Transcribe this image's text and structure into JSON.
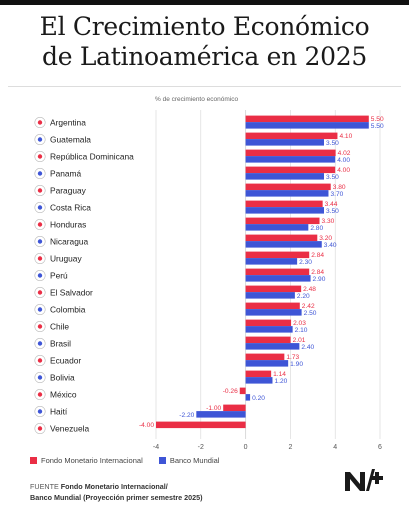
{
  "title_line1": "El Crecimiento Económico",
  "title_line2": "de Latinoamérica en 2025",
  "colors": {
    "imf": "#ea2e45",
    "wb": "#3e55d6",
    "label": "#222222",
    "grid": "#d6d6d6"
  },
  "legend": {
    "imf": "Fondo Monetario Internacional",
    "wb": "Banco Mundial"
  },
  "source": {
    "prefix": "FUENTE",
    "line1": "Fondo Monetario Internacional/",
    "line2": "Banco Mundial (Proyección primer semestre 2025)"
  },
  "logo_text": "N+",
  "chart_data": {
    "type": "bar",
    "orientation": "horizontal",
    "xlabel": "% de crecimiento económico",
    "xlim": [
      -4,
      6
    ],
    "xticks": [
      -4,
      -2,
      0,
      2,
      4,
      6
    ],
    "categories": [
      "Argentina",
      "Guatemala",
      "República Dominicana",
      "Panamá",
      "Paraguay",
      "Costa Rica",
      "Honduras",
      "Nicaragua",
      "Uruguay",
      "Perú",
      "El Salvador",
      "Colombia",
      "Chile",
      "Brasil",
      "Ecuador",
      "Bolivia",
      "México",
      "Haití",
      "Venezuela"
    ],
    "series": [
      {
        "name": "Fondo Monetario Internacional",
        "values": [
          5.5,
          4.1,
          4.02,
          4.0,
          3.8,
          3.44,
          3.3,
          3.2,
          2.84,
          2.84,
          2.48,
          2.42,
          2.03,
          2.01,
          1.73,
          1.14,
          -0.26,
          -1.0,
          -4.0
        ]
      },
      {
        "name": "Banco Mundial",
        "values": [
          5.5,
          3.5,
          4.0,
          3.5,
          3.7,
          3.5,
          2.8,
          3.4,
          2.3,
          2.9,
          2.2,
          2.5,
          2.1,
          2.4,
          1.9,
          1.2,
          0.2,
          -2.2,
          null
        ]
      }
    ],
    "value_labels": {
      "imf": [
        "5.50",
        "4.10",
        "4.02",
        "4.00",
        "3.80",
        "3.44",
        "3.30",
        "3.20",
        "2.84",
        "2.84",
        "2.48",
        "2.42",
        "2.03",
        "2.01",
        "1.73",
        "1.14",
        "-0.26",
        "-1.00",
        "-4.00"
      ],
      "wb": [
        "5.50",
        "3.50",
        "4.00",
        "3.50",
        "3.70",
        "3.50",
        "2.80",
        "3.40",
        "2.30",
        "2.90",
        "2.20",
        "2.50",
        "2.10",
        "2.40",
        "1.90",
        "1.20",
        "0.20",
        "-2.20",
        ""
      ]
    },
    "flags": [
      "argentina-flag-icon",
      "guatemala-flag-icon",
      "dominican-republic-flag-icon",
      "panama-flag-icon",
      "paraguay-flag-icon",
      "costa-rica-flag-icon",
      "honduras-flag-icon",
      "nicaragua-flag-icon",
      "uruguay-flag-icon",
      "peru-flag-icon",
      "el-salvador-flag-icon",
      "colombia-flag-icon",
      "chile-flag-icon",
      "brazil-flag-icon",
      "ecuador-flag-icon",
      "bolivia-flag-icon",
      "mexico-flag-icon",
      "haiti-flag-icon",
      "venezuela-flag-icon"
    ],
    "grid": true,
    "legend_position": "bottom-left"
  }
}
